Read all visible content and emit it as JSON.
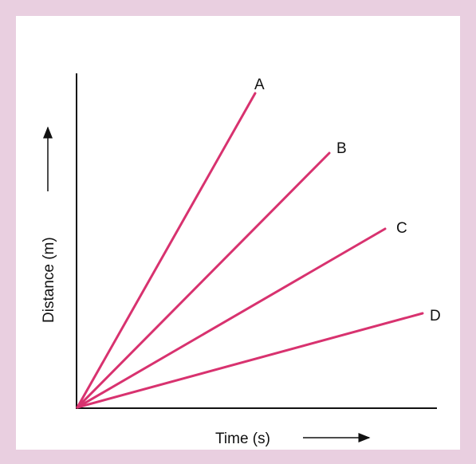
{
  "axes": {
    "y_label": "Distance (m)",
    "x_label": "Time (s)"
  },
  "lines": [
    {
      "label": "A"
    },
    {
      "label": "B"
    },
    {
      "label": "C"
    },
    {
      "label": "D"
    }
  ]
}
